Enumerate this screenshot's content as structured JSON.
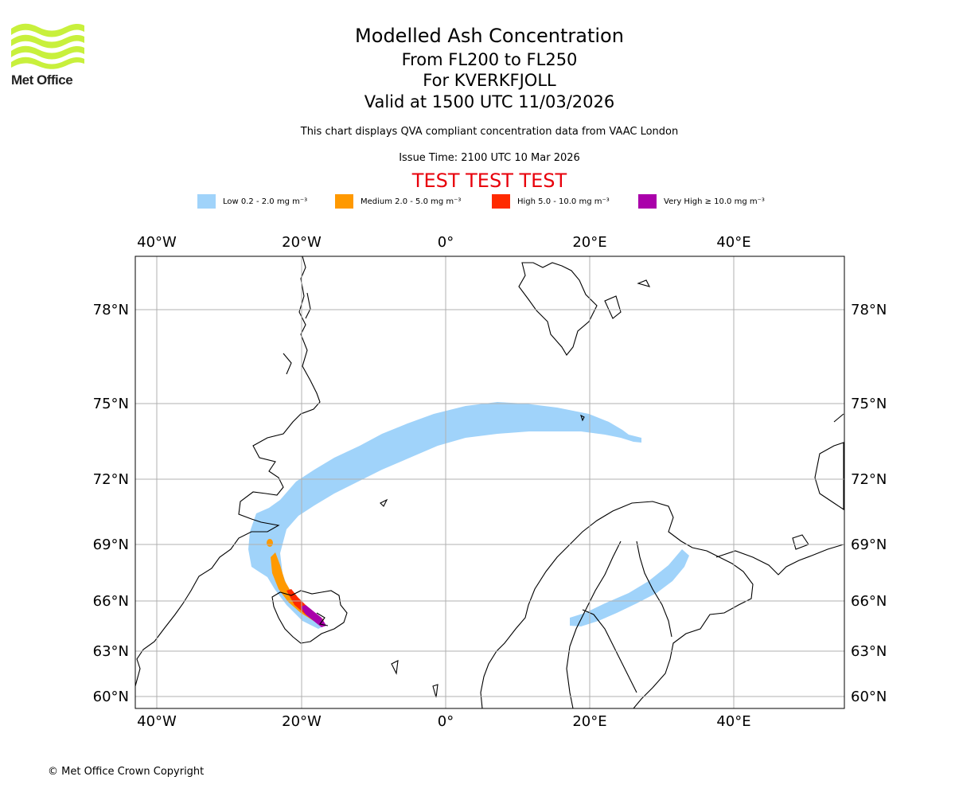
{
  "logo": {
    "text": "Met Office",
    "color": "#c8f03c"
  },
  "title": {
    "line1": "Modelled Ash Concentration",
    "line2": "From FL200 to FL250",
    "line3": "For KVERKFJOLL",
    "line4": "Valid at 1500 UTC 11/03/2026"
  },
  "subtitle": "This chart displays QVA compliant concentration data from VAAC London",
  "issue_time": "Issue Time: 2100 UTC 10 Mar 2026",
  "test_banner": "TEST TEST TEST",
  "legend": [
    {
      "label": "Low 0.2 - 2.0 mg m⁻³",
      "color": "#a0d3fa"
    },
    {
      "label": "Medium 2.0 - 5.0 mg m⁻³",
      "color": "#ff9900"
    },
    {
      "label": "High 5.0 - 10.0 mg m⁻³",
      "color": "#ff2a00"
    },
    {
      "label": "Very High  ≥  10.0 mg m⁻³",
      "color": "#aa00aa"
    }
  ],
  "map": {
    "lon_labels": [
      "40°W",
      "20°W",
      "0°",
      "20°E",
      "40°E"
    ],
    "lat_labels": [
      "78°N",
      "75°N",
      "72°N",
      "69°N",
      "66°N",
      "63°N",
      "60°N"
    ]
  },
  "copyright": "© Met Office Crown Copyright"
}
